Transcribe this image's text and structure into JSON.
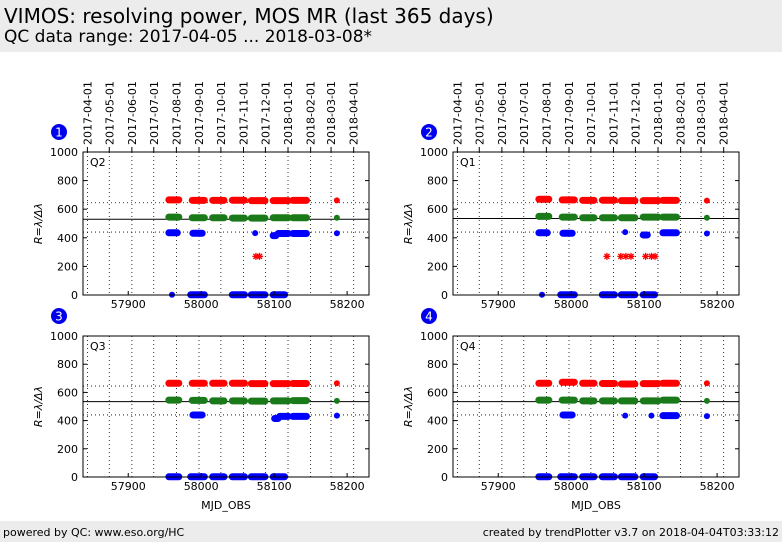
{
  "page": {
    "title": "VIMOS: resolving power, MOS MR (last 365 days)",
    "subtitle": "QC data range: 2017-04-05 ... 2018-03-08*"
  },
  "footer": {
    "left": "powered by QC: www.eso.org/HC",
    "right": "created by trendPlotter v3.7 on 2018-04-04T03:33:12"
  },
  "colors": {
    "red": "#ff0000",
    "green": "#1a7a1a",
    "blue": "#0000ff",
    "badge": "#0000ee"
  },
  "top_date_ticks": [
    {
      "label": "2017-04-01",
      "mjd": 57844
    },
    {
      "label": "2017-05-01",
      "mjd": 57874
    },
    {
      "label": "2017-06-01",
      "mjd": 57905
    },
    {
      "label": "2017-07-01",
      "mjd": 57935
    },
    {
      "label": "2017-08-01",
      "mjd": 57966
    },
    {
      "label": "2017-09-01",
      "mjd": 57997
    },
    {
      "label": "2017-10-01",
      "mjd": 58027
    },
    {
      "label": "2017-11-01",
      "mjd": 58058
    },
    {
      "label": "2017-12-01",
      "mjd": 58088
    },
    {
      "label": "2018-01-01",
      "mjd": 58119
    },
    {
      "label": "2018-02-01",
      "mjd": 58150
    },
    {
      "label": "2018-03-01",
      "mjd": 58178
    },
    {
      "label": "2018-04-01",
      "mjd": 58209
    }
  ],
  "chart_data": [
    {
      "type": "scatter",
      "badge": "1",
      "panel_label": "Q2",
      "ylabel": "R=λ/Δλ",
      "xlabel": "",
      "xlim": [
        57838,
        58230
      ],
      "ylim": [
        0,
        1000
      ],
      "xticks": [
        57900,
        58000,
        58100,
        58200
      ],
      "yticks": [
        0,
        200,
        400,
        600,
        800,
        1000
      ],
      "reference_line": 530,
      "dotted_lines": [
        440,
        645
      ],
      "series": [
        {
          "color": "red",
          "segments": [
            [
              57955,
              57970,
              665
            ],
            [
              57987,
              58005,
              662
            ],
            [
              58015,
              58032,
              662
            ],
            [
              58042,
              58060,
              663
            ],
            [
              58068,
              58088,
              660
            ],
            [
              58098,
              58120,
              660
            ],
            [
              58125,
              58145,
              662
            ]
          ],
          "points": [
            [
              58186,
              662
            ]
          ]
        },
        {
          "color": "green",
          "segments": [
            [
              57955,
              57970,
              545
            ],
            [
              57987,
              58005,
              540
            ],
            [
              58015,
              58032,
              540
            ],
            [
              58042,
              58060,
              538
            ],
            [
              58068,
              58088,
              538
            ],
            [
              58098,
              58120,
              540
            ],
            [
              58125,
              58145,
              540
            ]
          ],
          "points": [
            [
              58186,
              540
            ]
          ]
        },
        {
          "color": "blue",
          "segments": [
            [
              57955,
              57968,
              435
            ],
            [
              57988,
              58002,
              432
            ],
            [
              58098,
              58103,
              415
            ],
            [
              58105,
              58120,
              430
            ],
            [
              58125,
              58145,
              430
            ],
            [
              57985,
              58005,
              2
            ],
            [
              58042,
              58060,
              2
            ],
            [
              58068,
              58088,
              2
            ],
            [
              58098,
              58115,
              2
            ]
          ],
          "points": [
            [
              58074,
              433
            ],
            [
              58186,
              432
            ],
            [
              57960,
              2
            ]
          ]
        },
        {
          "color": "red",
          "marker": "star",
          "points": [
            [
              58075,
              270
            ],
            [
              58080,
              270
            ]
          ]
        }
      ]
    },
    {
      "type": "scatter",
      "badge": "2",
      "panel_label": "Q1",
      "ylabel": "R=λ/Δλ",
      "xlabel": "",
      "xlim": [
        57838,
        58230
      ],
      "ylim": [
        0,
        1000
      ],
      "xticks": [
        57900,
        58000,
        58100,
        58200
      ],
      "yticks": [
        0,
        200,
        400,
        600,
        800,
        1000
      ],
      "reference_line": 535,
      "dotted_lines": [
        440,
        645
      ],
      "series": [
        {
          "color": "red",
          "segments": [
            [
              57955,
              57970,
              670
            ],
            [
              57987,
              58005,
              665
            ],
            [
              58015,
              58032,
              662
            ],
            [
              58042,
              58060,
              663
            ],
            [
              58068,
              58088,
              660
            ],
            [
              58098,
              58120,
              660
            ],
            [
              58125,
              58145,
              662
            ]
          ],
          "points": [
            [
              58186,
              660
            ]
          ]
        },
        {
          "color": "green",
          "segments": [
            [
              57955,
              57970,
              550
            ],
            [
              57987,
              58005,
              545
            ],
            [
              58015,
              58032,
              540
            ],
            [
              58042,
              58060,
              540
            ],
            [
              58068,
              58088,
              540
            ],
            [
              58098,
              58120,
              545
            ],
            [
              58125,
              58145,
              545
            ]
          ],
          "points": [
            [
              58186,
              540
            ]
          ]
        },
        {
          "color": "blue",
          "segments": [
            [
              57955,
              57968,
              435
            ],
            [
              57988,
              58002,
              432
            ],
            [
              58098,
              58105,
              420
            ],
            [
              58125,
              58145,
              435
            ],
            [
              57985,
              58005,
              2
            ],
            [
              58042,
              58060,
              2
            ],
            [
              58068,
              58088,
              2
            ],
            [
              58098,
              58115,
              2
            ]
          ],
          "points": [
            [
              58074,
              440
            ],
            [
              58186,
              430
            ],
            [
              57960,
              2
            ]
          ]
        },
        {
          "color": "red",
          "marker": "star",
          "points": [
            [
              58049,
              270
            ],
            [
              58068,
              270
            ],
            [
              58075,
              270
            ],
            [
              58082,
              270
            ],
            [
              58102,
              270
            ],
            [
              58110,
              270
            ],
            [
              58115,
              270
            ]
          ]
        }
      ]
    },
    {
      "type": "scatter",
      "badge": "3",
      "panel_label": "Q3",
      "ylabel": "R=λ/Δλ",
      "xlabel": "MJD_OBS",
      "xlim": [
        57838,
        58230
      ],
      "ylim": [
        0,
        1000
      ],
      "xticks": [
        57900,
        58000,
        58100,
        58200
      ],
      "yticks": [
        0,
        200,
        400,
        600,
        800,
        1000
      ],
      "reference_line": 535,
      "dotted_lines": [
        440,
        645
      ],
      "series": [
        {
          "color": "red",
          "segments": [
            [
              57955,
              57970,
              665
            ],
            [
              57987,
              58005,
              665
            ],
            [
              58015,
              58032,
              665
            ],
            [
              58042,
              58060,
              665
            ],
            [
              58068,
              58088,
              662
            ],
            [
              58098,
              58120,
              662
            ],
            [
              58125,
              58145,
              663
            ]
          ],
          "points": [
            [
              58186,
              665
            ]
          ]
        },
        {
          "color": "green",
          "segments": [
            [
              57955,
              57970,
              545
            ],
            [
              57987,
              58005,
              543
            ],
            [
              58015,
              58032,
              540
            ],
            [
              58042,
              58060,
              540
            ],
            [
              58068,
              58088,
              538
            ],
            [
              58098,
              58120,
              540
            ],
            [
              58125,
              58145,
              542
            ]
          ],
          "points": [
            [
              58186,
              540
            ]
          ]
        },
        {
          "color": "blue",
          "segments": [
            [
              57988,
              58002,
              440
            ],
            [
              58100,
              58106,
              415
            ],
            [
              58107,
              58120,
              430
            ],
            [
              58125,
              58145,
              430
            ],
            [
              57955,
              57970,
              2
            ],
            [
              57985,
              58005,
              2
            ],
            [
              58015,
              58032,
              2
            ],
            [
              58042,
              58060,
              2
            ],
            [
              58068,
              58088,
              2
            ],
            [
              58098,
              58115,
              2
            ]
          ],
          "points": [
            [
              58186,
              435
            ]
          ]
        }
      ]
    },
    {
      "type": "scatter",
      "badge": "4",
      "panel_label": "Q4",
      "ylabel": "R=λ/Δλ",
      "xlabel": "MJD_OBS",
      "xlim": [
        57838,
        58230
      ],
      "ylim": [
        0,
        1000
      ],
      "xticks": [
        57900,
        58000,
        58100,
        58200
      ],
      "yticks": [
        0,
        200,
        400,
        600,
        800,
        1000
      ],
      "reference_line": 535,
      "dotted_lines": [
        440,
        645
      ],
      "series": [
        {
          "color": "red",
          "segments": [
            [
              57955,
              57970,
              665
            ],
            [
              57987,
              58005,
              672
            ],
            [
              58015,
              58032,
              665
            ],
            [
              58042,
              58060,
              663
            ],
            [
              58068,
              58088,
              660
            ],
            [
              58098,
              58120,
              662
            ],
            [
              58125,
              58145,
              665
            ]
          ],
          "points": [
            [
              58186,
              665
            ]
          ]
        },
        {
          "color": "green",
          "segments": [
            [
              57955,
              57970,
              545
            ],
            [
              57987,
              58005,
              545
            ],
            [
              58015,
              58032,
              540
            ],
            [
              58042,
              58060,
              540
            ],
            [
              58068,
              58088,
              540
            ],
            [
              58098,
              58120,
              540
            ],
            [
              58125,
              58145,
              545
            ]
          ],
          "points": [
            [
              58186,
              540
            ]
          ]
        },
        {
          "color": "blue",
          "segments": [
            [
              57988,
              58002,
              440
            ],
            [
              58125,
              58145,
              435
            ],
            [
              57955,
              57970,
              2
            ],
            [
              57985,
              58005,
              2
            ],
            [
              58015,
              58032,
              2
            ],
            [
              58042,
              58060,
              2
            ],
            [
              58068,
              58088,
              2
            ],
            [
              58098,
              58115,
              2
            ]
          ],
          "points": [
            [
              58074,
              435
            ],
            [
              58110,
              435
            ],
            [
              58186,
              432
            ]
          ]
        }
      ]
    }
  ]
}
